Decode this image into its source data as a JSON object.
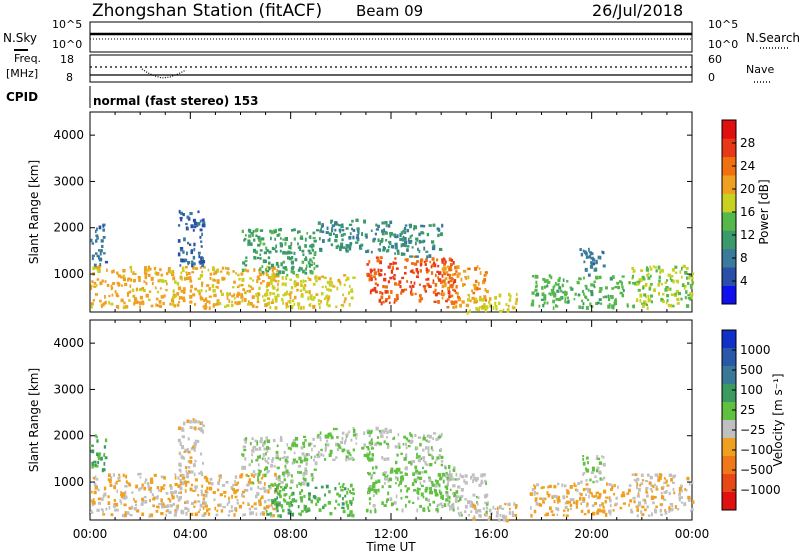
{
  "header": {
    "station": "Zhongshan Station (fitACF)",
    "beam": "Beam 09",
    "date": "26/Jul/2018"
  },
  "panels": {
    "nsky": {
      "left_label": "N.Sky",
      "right_label": "N.Search",
      "left_ticks": [
        "10^5",
        "10^0"
      ],
      "right_ticks": [
        "10^5",
        "10^0"
      ]
    },
    "freq": {
      "left_label_line1": "Freq.",
      "left_label_line2": "[MHz]",
      "right_label": "Nave",
      "left_ticks": [
        "18",
        "8"
      ],
      "right_ticks": [
        "60",
        "0"
      ]
    },
    "cpid": {
      "label": "CPID",
      "text": "normal (fast stereo) 153"
    }
  },
  "colors": {
    "power": [
      "#1010ee",
      "#2a4fa8",
      "#3a7a9a",
      "#3a9a6a",
      "#55b84a",
      "#c8d020",
      "#f0a020",
      "#f07010",
      "#e83818",
      "#e01010"
    ],
    "velocity": [
      "#1030c8",
      "#2a58a8",
      "#3a7898",
      "#3a9a60",
      "#60c040",
      "#c0c0c0",
      "#f0a020",
      "#f07818",
      "#e84818",
      "#e01010"
    ]
  },
  "chart_data": [
    {
      "type": "heatmap",
      "title": "Power",
      "xlabel": "Time UT",
      "ylabel": "Slant Range [km]",
      "x_ticks": [
        "00:00",
        "04:00",
        "08:00",
        "12:00",
        "16:00",
        "20:00",
        "00:00"
      ],
      "xlim": [
        0,
        24
      ],
      "ylim": [
        180,
        4500
      ],
      "y_ticks": [
        1000,
        2000,
        3000,
        4000
      ],
      "colorbar": {
        "label": "Power [dB]",
        "range": [
          0,
          32
        ],
        "ticks": [
          "4",
          "8",
          "12",
          "16",
          "20",
          "24",
          "28"
        ]
      },
      "echo_regions": [
        {
          "t_start": 0.0,
          "t_end": 7.5,
          "r_min": 300,
          "r_max": 1200,
          "value": 20
        },
        {
          "t_start": 0.0,
          "t_end": 0.6,
          "r_min": 1200,
          "r_max": 2100,
          "value": 8
        },
        {
          "t_start": 3.5,
          "t_end": 4.5,
          "r_min": 1200,
          "r_max": 2400,
          "value": 6
        },
        {
          "t_start": 6.0,
          "t_end": 9.0,
          "r_min": 1000,
          "r_max": 2000,
          "value": 12
        },
        {
          "t_start": 9.0,
          "t_end": 12.0,
          "r_min": 1500,
          "r_max": 2200,
          "value": 10
        },
        {
          "t_start": 7.0,
          "t_end": 10.5,
          "r_min": 300,
          "r_max": 1000,
          "value": 18
        },
        {
          "t_start": 11.0,
          "t_end": 14.5,
          "r_min": 400,
          "r_max": 1400,
          "value": 26
        },
        {
          "t_start": 12.0,
          "t_end": 14.0,
          "r_min": 1400,
          "r_max": 2100,
          "value": 10
        },
        {
          "t_start": 14.0,
          "t_end": 15.8,
          "r_min": 300,
          "r_max": 1200,
          "value": 22
        },
        {
          "t_start": 15.0,
          "t_end": 17.0,
          "r_min": 200,
          "r_max": 600,
          "value": 18
        },
        {
          "t_start": 17.5,
          "t_end": 21.5,
          "r_min": 300,
          "r_max": 1000,
          "value": 14
        },
        {
          "t_start": 19.5,
          "t_end": 20.5,
          "r_min": 1000,
          "r_max": 1600,
          "value": 8
        },
        {
          "t_start": 21.5,
          "t_end": 24.0,
          "r_min": 300,
          "r_max": 1200,
          "value": 16
        }
      ]
    },
    {
      "type": "heatmap",
      "title": "Velocity",
      "xlabel": "Time UT",
      "ylabel": "Slant Range [km]",
      "x_ticks": [
        "00:00",
        "04:00",
        "08:00",
        "12:00",
        "16:00",
        "20:00",
        "00:00"
      ],
      "xlim": [
        0,
        24
      ],
      "ylim": [
        180,
        4500
      ],
      "y_ticks": [
        1000,
        2000,
        3000,
        4000
      ],
      "colorbar": {
        "label": "Velocity [m s⁻¹]",
        "range": [
          -1200,
          1200
        ],
        "ticks": [
          "1000",
          "500",
          "100",
          "25",
          "−25",
          "−100",
          "−500",
          "−1000"
        ]
      },
      "echo_regions": [
        {
          "t_start": 0.0,
          "t_end": 7.5,
          "r_min": 300,
          "r_max": 1200,
          "value": -250
        },
        {
          "t_start": 0.0,
          "t_end": 0.6,
          "r_min": 1200,
          "r_max": 2100,
          "value": 300
        },
        {
          "t_start": 3.5,
          "t_end": 4.5,
          "r_min": 1200,
          "r_max": 2400,
          "value": -150
        },
        {
          "t_start": 6.0,
          "t_end": 9.0,
          "r_min": 1000,
          "r_max": 2000,
          "value": 0
        },
        {
          "t_start": 9.0,
          "t_end": 12.0,
          "r_min": 1500,
          "r_max": 2200,
          "value": 10
        },
        {
          "t_start": 7.0,
          "t_end": 10.5,
          "r_min": 300,
          "r_max": 1000,
          "value": 200
        },
        {
          "t_start": 11.0,
          "t_end": 14.5,
          "r_min": 400,
          "r_max": 1400,
          "value": 80
        },
        {
          "t_start": 12.0,
          "t_end": 14.0,
          "r_min": 1400,
          "r_max": 2100,
          "value": 0
        },
        {
          "t_start": 14.0,
          "t_end": 15.8,
          "r_min": 300,
          "r_max": 1200,
          "value": -80
        },
        {
          "t_start": 15.0,
          "t_end": 17.0,
          "r_min": 200,
          "r_max": 600,
          "value": -200
        },
        {
          "t_start": 17.5,
          "t_end": 21.5,
          "r_min": 300,
          "r_max": 1000,
          "value": -300
        },
        {
          "t_start": 19.5,
          "t_end": 20.5,
          "r_min": 1000,
          "r_max": 1600,
          "value": 0
        },
        {
          "t_start": 21.5,
          "t_end": 24.0,
          "r_min": 300,
          "r_max": 1200,
          "value": -200
        }
      ]
    }
  ]
}
